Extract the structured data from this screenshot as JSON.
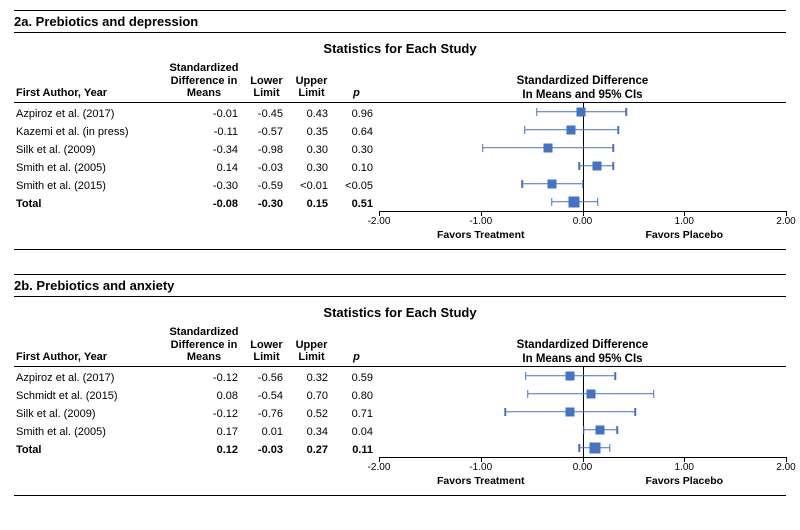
{
  "panels": [
    {
      "section_label": "2a. Prebiotics and depression",
      "stats_title": "Statistics for Each Study",
      "forest_title_line1": "Standardized Difference",
      "forest_title_line2": "In Means and 95% CIs",
      "columns": {
        "author": "First Author, Year",
        "smd": "Standardized Difference in Means",
        "lower": "Lower Limit",
        "upper": "Upper Limit",
        "p": "p"
      },
      "xmin": -2.0,
      "xmax": 2.0,
      "ticks": [
        -2.0,
        -1.0,
        0.0,
        1.0,
        2.0
      ],
      "tick_labels": [
        "-2.00",
        "-1.00",
        "0.00",
        "1.00",
        "2.00"
      ],
      "favors_left": "Favors Treatment",
      "favors_right": "Favors Placebo",
      "marker_color": "#4472c4",
      "rows": [
        {
          "author": "Azpiroz et al. (2017)",
          "smd": "-0.01",
          "lower": "-0.45",
          "upper": "0.43",
          "p": "0.96",
          "point": -0.01,
          "lo": -0.45,
          "hi": 0.43
        },
        {
          "author": "Kazemi et al. (in press)",
          "smd": "-0.11",
          "lower": "-0.57",
          "upper": "0.35",
          "p": "0.64",
          "point": -0.11,
          "lo": -0.57,
          "hi": 0.35
        },
        {
          "author": "Silk et al. (2009)",
          "smd": "-0.34",
          "lower": "-0.98",
          "upper": "0.30",
          "p": "0.30",
          "point": -0.34,
          "lo": -0.98,
          "hi": 0.3
        },
        {
          "author": "Smith et al. (2005)",
          "smd": "0.14",
          "lower": "-0.03",
          "upper": "0.30",
          "p": "0.10",
          "point": 0.14,
          "lo": -0.03,
          "hi": 0.3
        },
        {
          "author": "Smith et al. (2015)",
          "smd": "-0.30",
          "lower": "-0.59",
          "upper": "<0.01",
          "p": "<0.05",
          "point": -0.3,
          "lo": -0.59,
          "hi": 0.0
        }
      ],
      "total": {
        "author": "Total",
        "smd": "-0.08",
        "lower": "-0.30",
        "upper": "0.15",
        "p": "0.51",
        "point": -0.08,
        "lo": -0.3,
        "hi": 0.15
      }
    },
    {
      "section_label": "2b. Prebiotics and anxiety",
      "stats_title": "Statistics for Each Study",
      "forest_title_line1": "Standardized Difference",
      "forest_title_line2": "In Means and 95% CIs",
      "columns": {
        "author": "First Author, Year",
        "smd": "Standardized Difference in Means",
        "lower": "Lower Limit",
        "upper": "Upper Limit",
        "p": "p"
      },
      "xmin": -2.0,
      "xmax": 2.0,
      "ticks": [
        -2.0,
        -1.0,
        0.0,
        1.0,
        2.0
      ],
      "tick_labels": [
        "-2.00",
        "-1.00",
        "0.00",
        "1.00",
        "2.00"
      ],
      "favors_left": "Favors Treatment",
      "favors_right": "Favors Placebo",
      "marker_color": "#4472c4",
      "rows": [
        {
          "author": "Azpiroz et al. (2017)",
          "smd": "-0.12",
          "lower": "-0.56",
          "upper": "0.32",
          "p": "0.59",
          "point": -0.12,
          "lo": -0.56,
          "hi": 0.32
        },
        {
          "author": "Schmidt et al. (2015)",
          "smd": "0.08",
          "lower": "-0.54",
          "upper": "0.70",
          "p": "0.80",
          "point": 0.08,
          "lo": -0.54,
          "hi": 0.7
        },
        {
          "author": "Silk et al. (2009)",
          "smd": "-0.12",
          "lower": "-0.76",
          "upper": "0.52",
          "p": "0.71",
          "point": -0.12,
          "lo": -0.76,
          "hi": 0.52
        },
        {
          "author": "Smith et al. (2005)",
          "smd": "0.17",
          "lower": "0.01",
          "upper": "0.34",
          "p": "0.04",
          "point": 0.17,
          "lo": 0.01,
          "hi": 0.34
        }
      ],
      "total": {
        "author": "Total",
        "smd": "0.12",
        "lower": "-0.03",
        "upper": "0.27",
        "p": "0.11",
        "point": 0.12,
        "lo": -0.03,
        "hi": 0.27
      }
    }
  ]
}
